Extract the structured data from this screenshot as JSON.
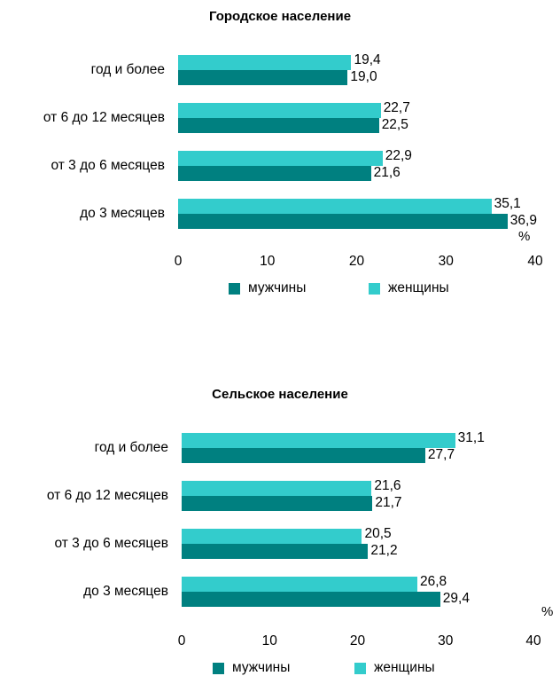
{
  "colors": {
    "men": "#008080",
    "women": "#33CCCC"
  },
  "legend": {
    "men": "мужчины",
    "women": "женщины"
  },
  "chart_data": [
    {
      "type": "bar",
      "orientation": "horizontal",
      "title": "Городское население",
      "categories": [
        "год и более",
        "от 6 до 12 месяцев",
        "от 3 до 6 месяцев",
        "до 3 месяцев"
      ],
      "series": [
        {
          "name": "женщины",
          "values": [
            19.4,
            22.7,
            22.9,
            35.1
          ],
          "labels": [
            "19,4",
            "22,7",
            "22,9",
            "35,1"
          ]
        },
        {
          "name": "мужчины",
          "values": [
            19.0,
            22.5,
            21.6,
            36.9
          ],
          "labels": [
            "19,0",
            "22,5",
            "21,6",
            "36,9"
          ]
        }
      ],
      "xlim": [
        0,
        40
      ],
      "xticks": [
        "0",
        "10",
        "20",
        "30",
        "40"
      ],
      "unit": "%",
      "grid": false,
      "legend_position": "bottom"
    },
    {
      "type": "bar",
      "orientation": "horizontal",
      "title": "Сельское население",
      "categories": [
        "год и более",
        "от 6 до 12 месяцев",
        "от 3 до 6 месяцев",
        "до 3 месяцев"
      ],
      "series": [
        {
          "name": "женщины",
          "values": [
            31.1,
            21.6,
            20.5,
            26.8
          ],
          "labels": [
            "31,1",
            "21,6",
            "20,5",
            "26,8"
          ]
        },
        {
          "name": "мужчины",
          "values": [
            27.7,
            21.7,
            21.2,
            29.4
          ],
          "labels": [
            "27,7",
            "21,7",
            "21,2",
            "29,4"
          ]
        }
      ],
      "xlim": [
        0,
        40
      ],
      "xticks": [
        "0",
        "10",
        "20",
        "30",
        "40"
      ],
      "unit": "%",
      "grid": false,
      "legend_position": "bottom"
    }
  ]
}
